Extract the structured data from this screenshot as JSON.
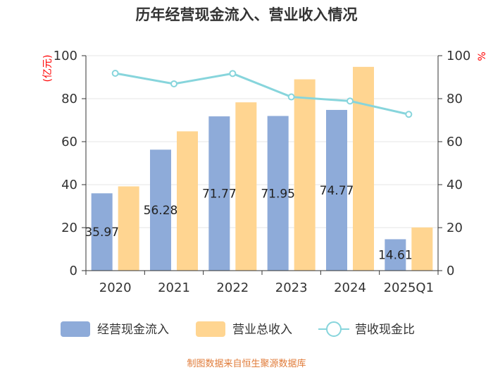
{
  "chart_data": {
    "type": "bar",
    "title": "历年经营现金流入、营业收入情况",
    "left_axis_unit": "(亿元)",
    "right_axis_unit": "%",
    "categories": [
      "2020",
      "2021",
      "2022",
      "2023",
      "2024",
      "2025Q1"
    ],
    "ylim": [
      0,
      100
    ],
    "y_ticks": [
      "0",
      "20",
      "40",
      "60",
      "80",
      "100"
    ],
    "y2lim": [
      0,
      100
    ],
    "y2_ticks": [
      "0",
      "20",
      "40",
      "60",
      "80",
      "100"
    ],
    "grid": true,
    "legend_position": "bottom",
    "series": [
      {
        "name": "经营现金流入",
        "kind": "bar",
        "axis": "left",
        "color": "#8eabd9",
        "values": [
          35.97,
          56.28,
          71.77,
          71.95,
          74.77,
          14.61
        ],
        "labels": [
          "35.97",
          "56.28",
          "71.77",
          "71.95",
          "74.77",
          "14.61"
        ]
      },
      {
        "name": "营业总收入",
        "kind": "bar",
        "axis": "left",
        "color": "#ffd591",
        "values": [
          39.2,
          64.8,
          78.3,
          89.0,
          94.8,
          20.1
        ]
      },
      {
        "name": "营收现金比",
        "kind": "line",
        "axis": "right",
        "color": "#87d5dc",
        "values": [
          91.8,
          86.9,
          91.7,
          80.8,
          78.9,
          72.7
        ]
      }
    ]
  },
  "source": "制图数据来自恒生聚源数据库"
}
